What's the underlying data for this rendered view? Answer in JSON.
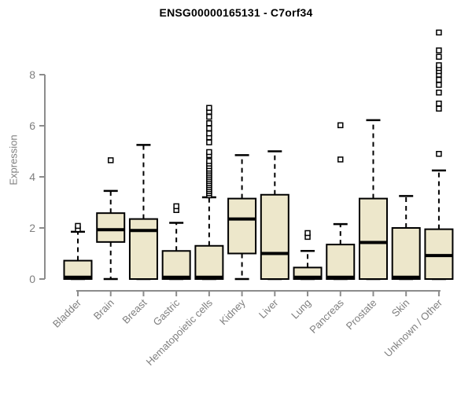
{
  "page": {
    "title": "ENSG00000165131 - C7orf34"
  },
  "chart_data": {
    "type": "boxplot",
    "title": "ENSG00000165131 - C7orf34",
    "xlabel": "",
    "ylabel": "Expression",
    "ylim": [
      0,
      9.8
    ],
    "yticks": [
      0,
      2,
      4,
      6,
      8
    ],
    "grid": false,
    "legend": "none",
    "colors": {
      "box_fill": "#ede7cb",
      "box_border": "#000000",
      "median": "#000000",
      "whisker": "#000000",
      "outlier": "#000000",
      "axis": "#8c8c8c",
      "tick_label": "#7f7f7f",
      "title": "#000000",
      "background": "#ffffff"
    },
    "categories": [
      "Bladder",
      "Brain",
      "Breast",
      "Gastric",
      "Hematopoietic cells",
      "Kidney",
      "Liver",
      "Lung",
      "Pancreas",
      "Prostate",
      "Skin",
      "Unknown / Other"
    ],
    "series": [
      {
        "name": "Bladder",
        "whisker_low": 0,
        "q1": 0,
        "median": 0.07,
        "q3": 0.72,
        "whisker_high": 1.85,
        "outliers": [
          1.95,
          2.08
        ]
      },
      {
        "name": "Brain",
        "whisker_low": 0,
        "q1": 1.45,
        "median": 1.93,
        "q3": 2.58,
        "whisker_high": 3.45,
        "outliers": [
          4.65
        ]
      },
      {
        "name": "Breast",
        "whisker_low": 0,
        "q1": 0,
        "median": 1.9,
        "q3": 2.35,
        "whisker_high": 5.25,
        "outliers": []
      },
      {
        "name": "Gastric",
        "whisker_low": 0,
        "q1": 0,
        "median": 0.07,
        "q3": 1.1,
        "whisker_high": 2.2,
        "outliers": [
          2.7,
          2.85
        ]
      },
      {
        "name": "Hematopoietic cells",
        "whisker_low": 0,
        "q1": 0,
        "median": 0.07,
        "q3": 1.3,
        "whisker_high": 3.2,
        "outliers": [
          3.28,
          3.36,
          3.44,
          3.52,
          3.6,
          3.68,
          3.76,
          3.84,
          3.92,
          4.0,
          4.08,
          4.16,
          4.24,
          4.32,
          4.42,
          4.52,
          4.62,
          4.85,
          4.97,
          5.35,
          5.55,
          5.7,
          5.9,
          6.1,
          6.35,
          6.55,
          6.7
        ]
      },
      {
        "name": "Kidney",
        "whisker_low": 0,
        "q1": 1.0,
        "median": 2.35,
        "q3": 3.15,
        "whisker_high": 4.85,
        "outliers": []
      },
      {
        "name": "Liver",
        "whisker_low": 0,
        "q1": 0,
        "median": 1.0,
        "q3": 3.3,
        "whisker_high": 5.0,
        "outliers": []
      },
      {
        "name": "Lung",
        "whisker_low": 0,
        "q1": 0,
        "median": 0.07,
        "q3": 0.45,
        "whisker_high": 1.1,
        "outliers": [
          1.65,
          1.8
        ]
      },
      {
        "name": "Pancreas",
        "whisker_low": 0,
        "q1": 0,
        "median": 0.07,
        "q3": 1.35,
        "whisker_high": 2.15,
        "outliers": [
          4.68,
          6.02
        ]
      },
      {
        "name": "Prostate",
        "whisker_low": 0,
        "q1": 0,
        "median": 1.43,
        "q3": 3.15,
        "whisker_high": 6.22,
        "outliers": []
      },
      {
        "name": "Skin",
        "whisker_low": 0,
        "q1": 0,
        "median": 0.07,
        "q3": 2.0,
        "whisker_high": 3.25,
        "outliers": []
      },
      {
        "name": "Unknown / Other",
        "whisker_low": 0,
        "q1": 0,
        "median": 0.92,
        "q3": 1.95,
        "whisker_high": 4.25,
        "outliers": [
          4.9,
          6.67,
          6.87,
          7.3,
          7.6,
          7.8,
          8.0,
          8.14,
          8.26,
          8.37,
          8.7,
          8.95,
          9.65
        ]
      }
    ]
  }
}
